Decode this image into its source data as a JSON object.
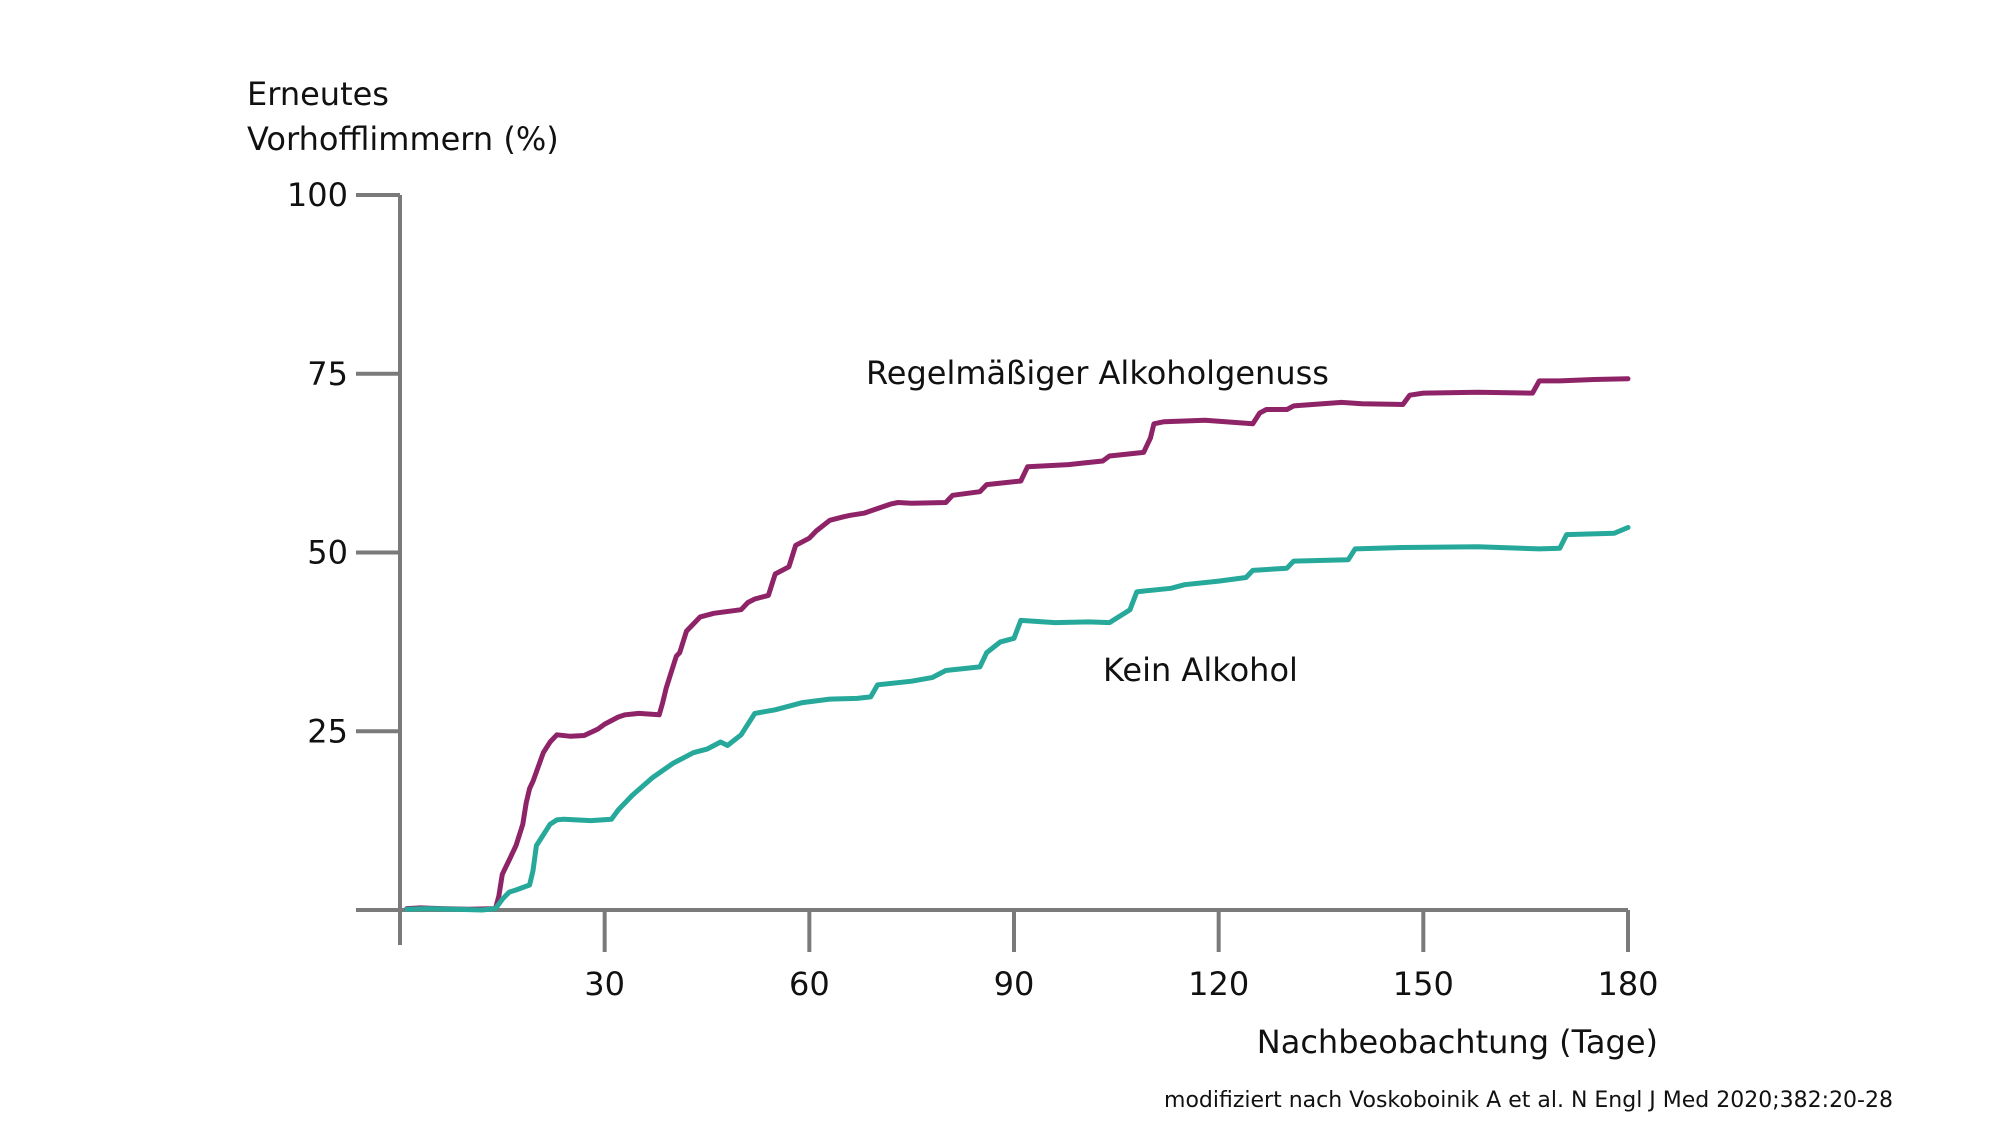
{
  "chart_data": {
    "type": "line",
    "ylabel_lines": [
      "Erneutes",
      "Vorhofflimmern (%)"
    ],
    "xlabel": "Nachbeobachtung (Tage)",
    "xlim": [
      0,
      180
    ],
    "ylim": [
      0,
      100
    ],
    "xticks": [
      30,
      60,
      90,
      120,
      150,
      180
    ],
    "yticks": [
      25,
      50,
      75,
      100
    ],
    "grid": false,
    "source": "modifiziert nach Voskoboinik A et al. N Engl J Med 2020;382:20-28",
    "series": [
      {
        "name": "Regelmäßiger Alkoholgenuss",
        "color": "#8e2467",
        "x": [
          1,
          3,
          6,
          10,
          14,
          14.5,
          15,
          16,
          17,
          18,
          18.5,
          19,
          19.5,
          21,
          22,
          22.5,
          23,
          25,
          27,
          29,
          30,
          32,
          33,
          35,
          38,
          38.5,
          39,
          40,
          40.5,
          41,
          42,
          44,
          46,
          50,
          51,
          52,
          54,
          55,
          57,
          58,
          60,
          61,
          63,
          65,
          66,
          68,
          72,
          73,
          75,
          80,
          81,
          85,
          86,
          91,
          92,
          98,
          100,
          103,
          104,
          109,
          110,
          110.5,
          112,
          118,
          125,
          126,
          127,
          130,
          131,
          138,
          141,
          147,
          148,
          150,
          158,
          166,
          167,
          170,
          175,
          180
        ],
        "y": [
          0.2,
          0.3,
          0.2,
          0.1,
          0.2,
          2,
          5,
          7,
          9,
          12,
          15,
          17,
          18,
          22,
          23.5,
          24,
          24.5,
          24.3,
          24.4,
          25.3,
          26,
          27,
          27.3,
          27.5,
          27.3,
          29,
          31,
          34,
          35.5,
          36,
          39,
          41,
          41.5,
          42,
          43,
          43.5,
          44,
          47,
          48,
          51,
          52,
          53,
          54.5,
          55,
          55.2,
          55.5,
          56.8,
          57,
          56.9,
          57,
          58,
          58.5,
          59.5,
          60,
          62,
          62.3,
          62.5,
          62.8,
          63.5,
          64,
          66,
          68,
          68.3,
          68.5,
          68,
          69.5,
          70,
          70,
          70.5,
          71,
          70.8,
          70.7,
          72,
          72.3,
          72.4,
          72.3,
          74,
          74,
          74.2,
          74.3
        ]
      },
      {
        "name": "Kein Alkohol",
        "color": "#26a99a",
        "x": [
          1,
          4,
          8,
          12,
          14,
          15,
          16,
          17,
          19,
          19.5,
          20,
          21,
          22,
          23,
          24,
          28,
          31,
          32,
          34,
          37,
          40,
          43,
          45,
          47,
          48,
          50,
          52,
          55,
          57,
          59,
          63,
          67,
          69,
          70,
          75,
          78,
          80,
          85,
          86,
          88,
          90,
          91,
          96,
          101,
          104,
          107,
          108,
          113,
          115,
          120,
          124,
          125,
          130,
          131,
          139,
          140,
          147,
          158,
          167,
          170,
          171,
          178,
          180
        ],
        "y": [
          0.1,
          0.2,
          0.1,
          0.0,
          0.2,
          1.5,
          2.5,
          2.8,
          3.5,
          5.5,
          9,
          10.5,
          12,
          12.6,
          12.7,
          12.5,
          12.7,
          14,
          16,
          18.5,
          20.5,
          22,
          22.5,
          23.5,
          23,
          24.5,
          27.5,
          28,
          28.5,
          29,
          29.5,
          29.6,
          29.8,
          31.5,
          32,
          32.5,
          33.5,
          34,
          36,
          37.5,
          38,
          40.5,
          40.2,
          40.3,
          40.2,
          42,
          44.5,
          45,
          45.5,
          46,
          46.5,
          47.5,
          47.8,
          48.8,
          49,
          50.5,
          50.7,
          50.8,
          50.5,
          50.6,
          52.5,
          52.7,
          53.5
        ]
      }
    ]
  }
}
